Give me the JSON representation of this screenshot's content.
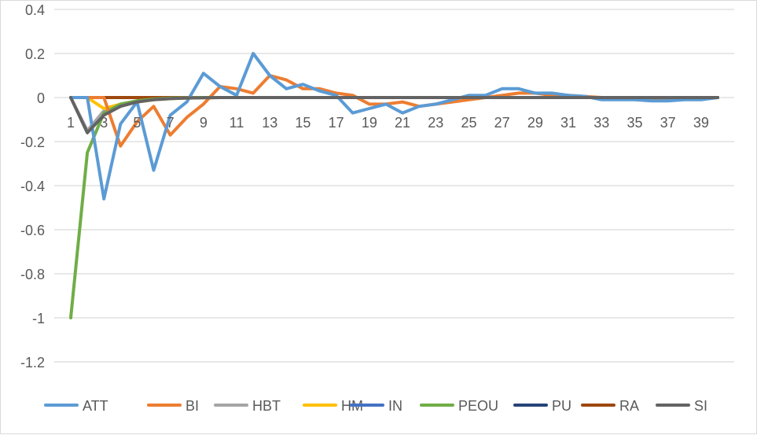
{
  "chart_data": {
    "type": "line",
    "title": "",
    "xlabel": "",
    "ylabel": "",
    "x": [
      1,
      2,
      3,
      4,
      5,
      6,
      7,
      8,
      9,
      10,
      11,
      12,
      13,
      14,
      15,
      16,
      17,
      18,
      19,
      20,
      21,
      22,
      23,
      24,
      25,
      26,
      27,
      28,
      29,
      30,
      31,
      32,
      33,
      34,
      35,
      36,
      37,
      38,
      39,
      40
    ],
    "x_tick_labels": [
      "1",
      "3",
      "5",
      "7",
      "9",
      "11",
      "13",
      "15",
      "17",
      "19",
      "21",
      "23",
      "25",
      "27",
      "29",
      "31",
      "33",
      "35",
      "37",
      "39"
    ],
    "ylim": [
      -1.3,
      0.4
    ],
    "y_ticks": [
      0.4,
      0.2,
      0,
      -0.2,
      -0.4,
      -0.6,
      -0.8,
      -1,
      -1.2
    ],
    "y_tick_labels": [
      "0.4",
      "0.2",
      "0",
      "-0.2",
      "-0.4",
      "-0.6",
      "-0.8",
      "-1",
      "-1.2"
    ],
    "grid": true,
    "legend_position": "bottom",
    "series": [
      {
        "name": "ATT",
        "color": "#5B9BD5",
        "values": [
          0,
          0,
          -0.46,
          -0.12,
          -0.02,
          -0.33,
          -0.08,
          -0.02,
          0.11,
          0.05,
          0.01,
          0.2,
          0.1,
          0.04,
          0.06,
          0.03,
          0.01,
          -0.07,
          -0.05,
          -0.03,
          -0.07,
          -0.04,
          -0.03,
          -0.01,
          0.01,
          0.01,
          0.04,
          0.04,
          0.02,
          0.02,
          0.01,
          0.005,
          -0.01,
          -0.01,
          -0.01,
          -0.015,
          -0.015,
          -0.01,
          -0.01,
          0
        ]
      },
      {
        "name": "BI",
        "color": "#ED7D31",
        "values": [
          0,
          0,
          0,
          -0.22,
          -0.11,
          -0.04,
          -0.17,
          -0.09,
          -0.03,
          0.05,
          0.04,
          0.02,
          0.1,
          0.08,
          0.04,
          0.04,
          0.02,
          0.01,
          -0.03,
          -0.03,
          -0.02,
          -0.04,
          -0.03,
          -0.02,
          -0.01,
          0,
          0.01,
          0.02,
          0.02,
          0.01,
          0.01,
          0.005,
          0,
          0,
          -0.005,
          -0.01,
          -0.01,
          -0.005,
          -0.005,
          0
        ]
      },
      {
        "name": "HBT",
        "color": "#A5A5A5",
        "values": [
          0,
          -0.15,
          -0.06,
          -0.03,
          -0.015,
          -0.008,
          -0.004,
          -0.002,
          -0.001,
          0,
          0,
          0,
          0,
          0,
          0,
          0,
          0,
          0,
          0,
          0,
          0,
          0,
          0,
          0,
          0,
          0,
          0,
          0,
          0,
          0,
          0,
          0,
          0,
          0,
          0,
          0,
          0,
          0,
          0,
          0
        ]
      },
      {
        "name": "HM",
        "color": "#FFC000",
        "values": [
          0,
          0,
          -0.05,
          -0.03,
          -0.02,
          -0.01,
          -0.005,
          -0.002,
          -0.001,
          0,
          0,
          0,
          0,
          0,
          0,
          0,
          0,
          0,
          0,
          0,
          0,
          0,
          0,
          0,
          0,
          0,
          0,
          0,
          0,
          0,
          0,
          0,
          0,
          0,
          0,
          0,
          0,
          0,
          0,
          0
        ]
      },
      {
        "name": "IN",
        "color": "#4472C4",
        "values": [
          0,
          0,
          0,
          0,
          0,
          0,
          0,
          0,
          0,
          0,
          0,
          0,
          0,
          0,
          0,
          0,
          0,
          0,
          0,
          0,
          0,
          0,
          0,
          0,
          0,
          0,
          0,
          0,
          0,
          0,
          0,
          0,
          0,
          0,
          0,
          0,
          0,
          0,
          0,
          0
        ]
      },
      {
        "name": "PEOU",
        "color": "#70AD47",
        "values": [
          -1,
          -0.25,
          -0.07,
          -0.03,
          -0.015,
          -0.007,
          -0.003,
          -0.001,
          0,
          0,
          0,
          0,
          0,
          0,
          0,
          0,
          0,
          0,
          0,
          0,
          0,
          0,
          0,
          0,
          0,
          0,
          0,
          0,
          0,
          0,
          0,
          0,
          0,
          0,
          0,
          0,
          0,
          0,
          0,
          0
        ]
      },
      {
        "name": "PU",
        "color": "#264478",
        "values": [
          0,
          0,
          0,
          0,
          0,
          0,
          0,
          0,
          0,
          0,
          0,
          0,
          0,
          0,
          0,
          0,
          0,
          0,
          0,
          0,
          0,
          0,
          0,
          0,
          0,
          0,
          0,
          0,
          0,
          0,
          0,
          0,
          0,
          0,
          0,
          0,
          0,
          0,
          0,
          0
        ]
      },
      {
        "name": "RA",
        "color": "#9E480E",
        "values": [
          0,
          0,
          0,
          0,
          0,
          0,
          0,
          0,
          0,
          0,
          0,
          0,
          0,
          0,
          0,
          0,
          0,
          0,
          0,
          0,
          0,
          0,
          0,
          0,
          0,
          0,
          0,
          0,
          0,
          0,
          0,
          0,
          0,
          0,
          0,
          0,
          0,
          0,
          0,
          0
        ]
      },
      {
        "name": "SI",
        "color": "#636363",
        "values": [
          0,
          -0.16,
          -0.08,
          -0.04,
          -0.02,
          -0.01,
          -0.005,
          -0.002,
          -0.001,
          0,
          0,
          0,
          0,
          0,
          0,
          0,
          0,
          0,
          0,
          0,
          0,
          0,
          0,
          0,
          0,
          0,
          0,
          0,
          0,
          0,
          0,
          0,
          0,
          0,
          0,
          0,
          0,
          0,
          0,
          0
        ]
      }
    ]
  }
}
